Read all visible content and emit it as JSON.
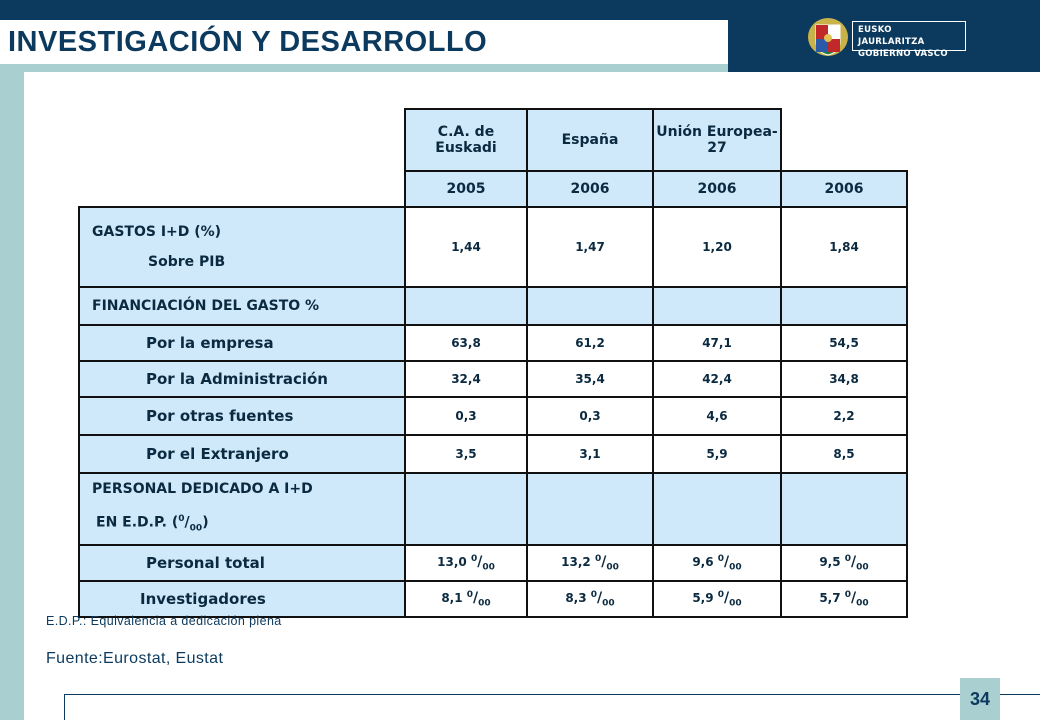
{
  "title": "INVESTIGACIÓN  Y DESARROLLO",
  "logo": {
    "line1": "EUSKO JAURLARITZA",
    "line2": "GOBIERNO VASCO"
  },
  "table": {
    "headers": {
      "regions": [
        "C.A. de Euskadi",
        "España",
        "Unión Europea-27"
      ],
      "years": [
        "2005",
        "2006",
        "2006",
        "2006"
      ]
    },
    "gastos": {
      "label1": "GASTOS I+D (%)",
      "label2": "Sobre PIB",
      "values": [
        "1,44",
        "1,47",
        "1,20",
        "1,84"
      ]
    },
    "financiacion_label": "FINANCIACIÓN DEL GASTO %",
    "financiacion_rows": [
      {
        "label": "Por la empresa",
        "values": [
          "63,8",
          "61,2",
          "47,1",
          "54,5"
        ]
      },
      {
        "label": "Por la Administración",
        "values": [
          "32,4",
          "35,4",
          "42,4",
          "34,8"
        ]
      },
      {
        "label": "Por otras fuentes",
        "values": [
          "0,3",
          "0,3",
          "4,6",
          "2,2"
        ]
      },
      {
        "label": "Por el Extranjero",
        "values": [
          "3,5",
          "3,1",
          "5,9",
          "8,5"
        ]
      }
    ],
    "personal": {
      "label1": "PERSONAL DEDICADO A I+D",
      "label2": "EN E.D.P. (",
      "unit_sup": "0",
      "unit_slash": "/",
      "unit_sub": "00",
      "label2_end": ")"
    },
    "personal_rows": [
      {
        "label": "Personal total",
        "values": [
          "13,0",
          "13,2",
          "9,6",
          "9,5"
        ]
      },
      {
        "label": "Investigadores",
        "values": [
          "8,1",
          "8,3",
          "5,9",
          "5,7"
        ]
      }
    ]
  },
  "note": "E.D.P.: Equivalencia  a dedicación  plena",
  "source": "Fuente:Eurostat,  Eustat",
  "page_number": "34",
  "colors": {
    "navy": "#0b3a5e",
    "teal": "#a9cfd0",
    "cell_blue": "#cfe9fb"
  }
}
